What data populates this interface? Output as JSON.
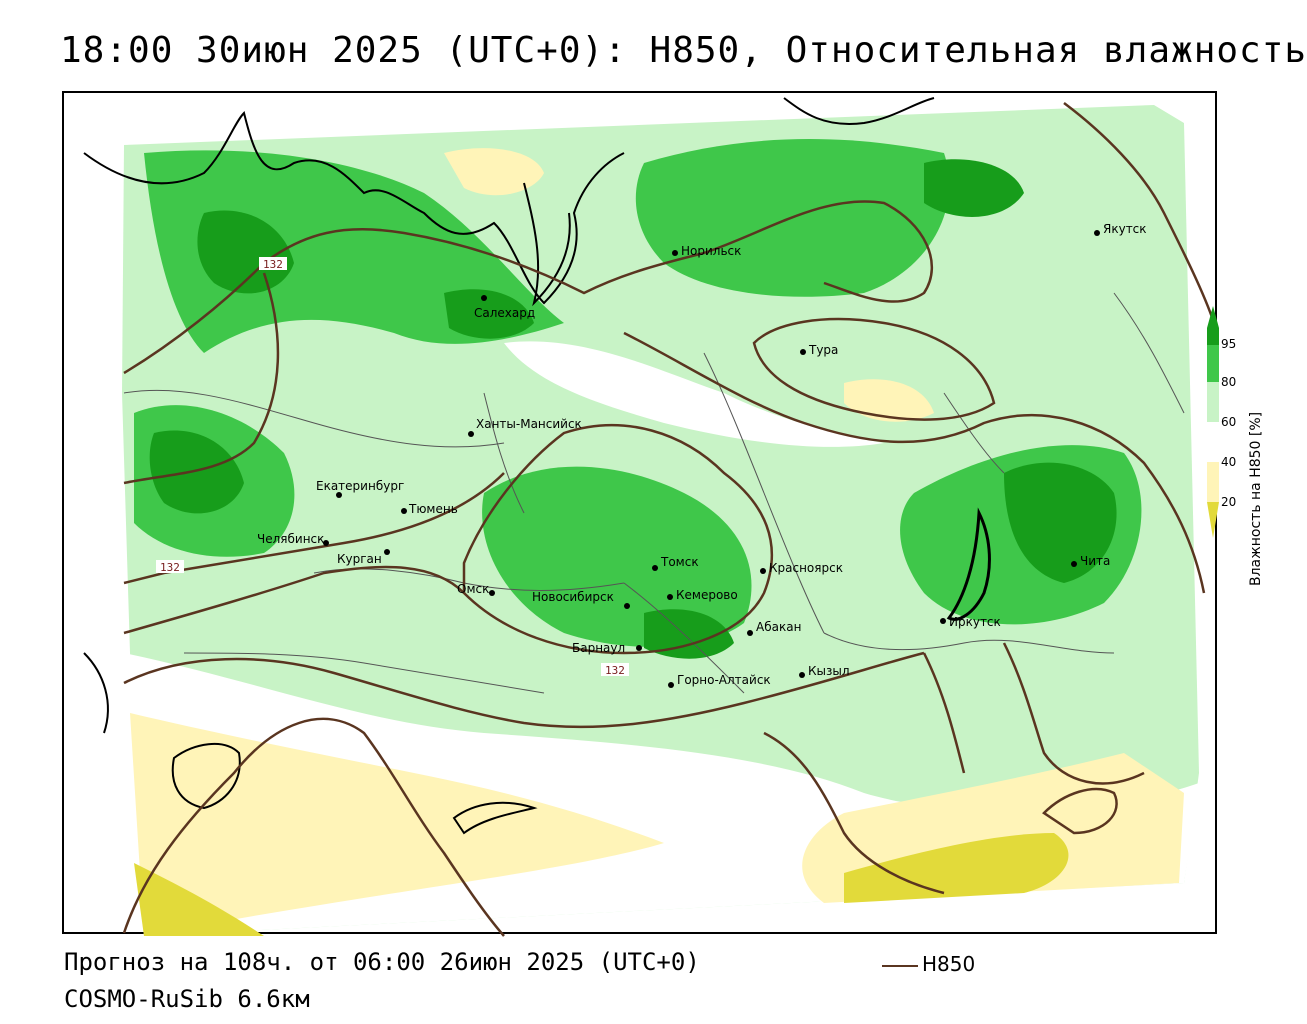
{
  "title": "18:00 30июн 2025 (UTC+0): H850, Относительная влажность",
  "footer": {
    "forecast": "Прогноз на 108ч. от 06:00 26июн 2025 (UTC+0)",
    "model": "COSMO-RuSib 6.6км",
    "legend_line_label": "H850"
  },
  "colorbar": {
    "title": "Влажность на H850 [%]",
    "ticks": [
      "95",
      "80",
      "60",
      "40",
      "20"
    ],
    "colors": [
      "#179d1b",
      "#3fc74a",
      "#c8f3c6",
      "#ffffff",
      "#fff4b8",
      "#e2da3a"
    ]
  },
  "contour_labels": [
    {
      "text": "132",
      "id": "ural"
    },
    {
      "text": "132",
      "id": "west"
    },
    {
      "text": "132",
      "id": "south"
    }
  ],
  "cities": [
    {
      "name": "Якутск"
    },
    {
      "name": "Норильск"
    },
    {
      "name": "Салехард"
    },
    {
      "name": "Тура"
    },
    {
      "name": "Ханты-Мансийск"
    },
    {
      "name": "Екатеринбург"
    },
    {
      "name": "Тюмень"
    },
    {
      "name": "Челябинск"
    },
    {
      "name": "Курган"
    },
    {
      "name": "Омск"
    },
    {
      "name": "Новосибирск"
    },
    {
      "name": "Томск"
    },
    {
      "name": "Кемерово"
    },
    {
      "name": "Красноярск"
    },
    {
      "name": "Барнаул"
    },
    {
      "name": "Абакан"
    },
    {
      "name": "Горно-Алтайск"
    },
    {
      "name": "Кызыл"
    },
    {
      "name": "Иркутск"
    },
    {
      "name": "Чита"
    }
  ],
  "colors": {
    "contour": "#5a3520",
    "coast": "#000000",
    "border": "#555555"
  }
}
